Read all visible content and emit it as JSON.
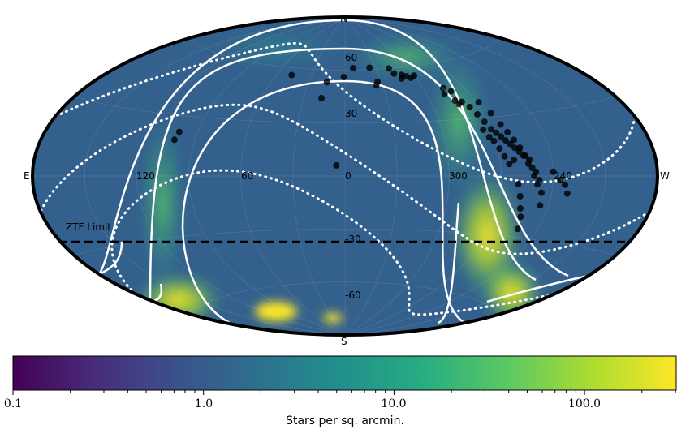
{
  "colors": {
    "viridis": [
      "#440154",
      "#472d7b",
      "#3b528b",
      "#2c728e",
      "#21918c",
      "#28ae80",
      "#5ec962",
      "#addc30",
      "#fde725"
    ],
    "map_base": "#34608d",
    "points": "#000000",
    "curves": "#ffffff"
  },
  "map": {
    "projection": "aitoff",
    "direction_labels": {
      "north": "N",
      "south": "S",
      "east": "E",
      "west": "W"
    },
    "longitude_labels": [
      "120",
      "60",
      "0",
      "300",
      "240"
    ],
    "latitude_labels": [
      "60",
      "30",
      "-30",
      "-60"
    ],
    "ztf_limit": {
      "label": "ZTF Limit",
      "dec": -30
    },
    "points_lon_lat": [
      [
        47,
        56
      ],
      [
        15,
        53
      ],
      [
        17,
        44
      ],
      [
        1,
        56
      ],
      [
        -8,
        61
      ],
      [
        -24,
        61
      ],
      [
        -25,
        51
      ],
      [
        -27,
        53
      ],
      [
        -42,
        60
      ],
      [
        -44,
        57
      ],
      [
        -48,
        54
      ],
      [
        -50,
        56
      ],
      [
        -53,
        55
      ],
      [
        -56,
        54
      ],
      [
        -60,
        55
      ],
      [
        -73,
        44
      ],
      [
        -75,
        47
      ],
      [
        -77,
        40
      ],
      [
        -78,
        38
      ],
      [
        -79,
        45
      ],
      [
        -81,
        39
      ],
      [
        -84,
        36
      ],
      [
        -86,
        32
      ],
      [
        -88,
        28
      ],
      [
        -90,
        24
      ],
      [
        -92,
        22
      ],
      [
        -94,
        20
      ],
      [
        -96,
        18
      ],
      [
        -98,
        16
      ],
      [
        -100,
        14
      ],
      [
        -102,
        12
      ],
      [
        -104,
        10
      ],
      [
        -106,
        6
      ],
      [
        -108,
        4
      ],
      [
        -110,
        2
      ],
      [
        -112,
        -2
      ],
      [
        -114,
        -8
      ],
      [
        -115,
        -14
      ],
      [
        -92,
        38
      ],
      [
        -95,
        32
      ],
      [
        -97,
        26
      ],
      [
        -99,
        22
      ],
      [
        -101,
        18
      ],
      [
        -103,
        14
      ],
      [
        -105,
        10
      ],
      [
        -107,
        8
      ],
      [
        -109,
        0
      ],
      [
        -111,
        -4
      ],
      [
        -89,
        18
      ],
      [
        -91,
        14
      ],
      [
        -93,
        10
      ],
      [
        -95,
        6
      ],
      [
        -120,
        2
      ],
      [
        -124,
        -2
      ],
      [
        -127,
        -4
      ],
      [
        -129,
        -8
      ],
      [
        -85,
        24
      ],
      [
        -87,
        20
      ],
      [
        -98,
        8
      ],
      [
        -100,
        -4
      ],
      [
        -102,
        -10
      ],
      [
        -104,
        -16
      ],
      [
        -106,
        -20
      ],
      [
        -108,
        -26
      ],
      [
        101,
        22
      ],
      [
        102,
        18
      ],
      [
        5,
        6
      ]
    ],
    "curves": {
      "outer_arc_x_at_equator": [
        0.5,
        -0.46
      ],
      "inner_arc_x_at_equator": [
        0.28,
        -0.22
      ]
    }
  },
  "colorbar": {
    "label": "Stars per sq. arcmin.",
    "scale": "log",
    "ticks": [
      "0.1",
      "1.0",
      "10.0",
      "100.0"
    ],
    "range": [
      0.1,
      300
    ]
  }
}
